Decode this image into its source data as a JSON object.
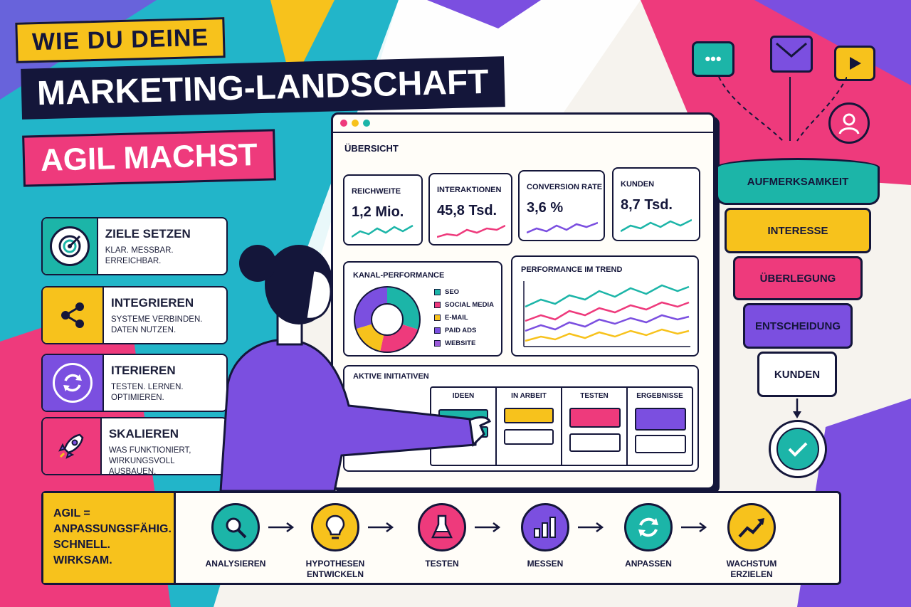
{
  "title": {
    "line1": "WIE DU DEINE",
    "line2": "MARKETING-LANDSCHAFT",
    "line3": "AGIL MACHST"
  },
  "steps": [
    {
      "title": "ZIELE SETZEN",
      "text": "KLAR. MESSBAR. ERREICHBAR.",
      "icon": "target-icon",
      "color": "#1cb5a8"
    },
    {
      "title": "INTEGRIEREN",
      "text": "SYSTEME VERBINDEN.\nDATEN NUTZEN.",
      "icon": "share-icon",
      "color": "#f7c21c"
    },
    {
      "title": "ITERIEREN",
      "text": "TESTEN. LERNEN.\nOPTIMIEREN.",
      "icon": "refresh-icon",
      "color": "#7b4fe0"
    },
    {
      "title": "SKALIEREN",
      "text": "WAS FUNKTIONIERT,\nWIRKUNGSVOLL AUSBAUEN.",
      "icon": "rocket-icon",
      "color": "#ee3a7c"
    }
  ],
  "dashboard": {
    "heading": "ÜBERSICHT",
    "kpis": [
      {
        "label": "REICHWEITE",
        "value": "1,2 Mio.",
        "color": "#1cb5a8"
      },
      {
        "label": "INTERAKTIONEN",
        "value": "45,8 Tsd.",
        "color": "#ee3a7c"
      },
      {
        "label": "CONVERSION RATE",
        "value": "3,6 %",
        "color": "#7b4fe0"
      },
      {
        "label": "KUNDEN",
        "value": "8,7 Tsd.",
        "color": "#1cb5a8"
      }
    ],
    "channel_title": "KANAL-PERFORMANCE",
    "channels": [
      {
        "name": "SEO",
        "color": "#1cb5a8"
      },
      {
        "name": "SOCIAL MEDIA",
        "color": "#ee3a7c"
      },
      {
        "name": "E-MAIL",
        "color": "#f7c21c"
      },
      {
        "name": "PAID ADS",
        "color": "#7b4fe0"
      },
      {
        "name": "WEBSITE",
        "color": "#9b59d8"
      }
    ],
    "trend_title": "PERFORMANCE IM TREND",
    "initiatives_title": "AKTIVE INITIATIVEN",
    "columns": [
      "IDEEN",
      "IN ARBEIT",
      "TESTEN",
      "ERGEBNISSE"
    ]
  },
  "funnel": [
    "AUFMERKSAMKEIT",
    "INTERESSE",
    "ÜBERLEGUNG",
    "ENTSCHEIDUNG",
    "KUNDEN"
  ],
  "funnel_colors": [
    "#1cb5a8",
    "#f7c21c",
    "#ee3a7c",
    "#7b4fe0",
    "#ffffff"
  ],
  "agil": {
    "line1": "AGIL =",
    "line2": "ANPASSUNGSFÄHIG.",
    "line3": "SCHNELL. WIRKSAM."
  },
  "process": [
    {
      "label": "ANALYSIEREN",
      "color": "#1cb5a8",
      "icon": "magnifier-icon"
    },
    {
      "label": "HYPOTHESEN ENTWICKELN",
      "color": "#f7c21c",
      "icon": "lightbulb-icon"
    },
    {
      "label": "TESTEN",
      "color": "#ee3a7c",
      "icon": "flask-icon"
    },
    {
      "label": "MESSEN",
      "color": "#7b4fe0",
      "icon": "bar-chart-icon"
    },
    {
      "label": "ANPASSEN",
      "color": "#1cb5a8",
      "icon": "cycle-icon"
    },
    {
      "label": "WACHSTUM ERZIELEN",
      "color": "#f7c21c",
      "icon": "growth-icon"
    }
  ]
}
